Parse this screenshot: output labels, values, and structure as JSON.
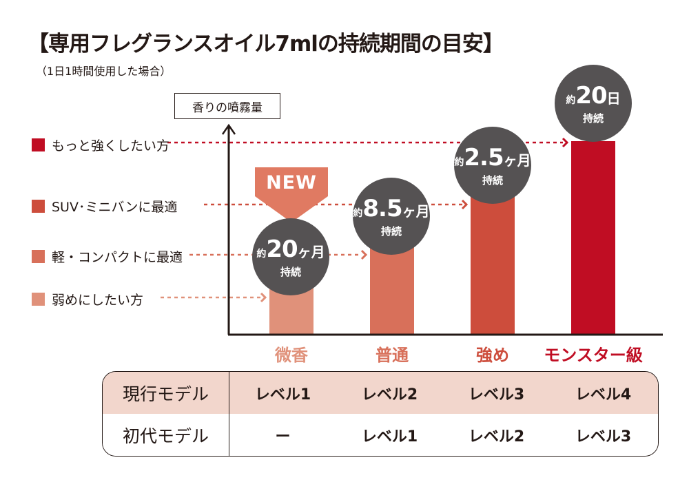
{
  "title": "【専用フレグランスオイル7mlの持続期間の目安】",
  "subtitle": "（1日1時間使用した場合）",
  "axis_label": "香りの噴霧量",
  "new_badge": "NEW",
  "colors": {
    "level1": "#e0917a",
    "level2": "#d8705a",
    "level3": "#cd4d3c",
    "level4": "#c00d23",
    "bubble": "#555253",
    "table_header_bg": "#f2d6cc",
    "text": "#231815"
  },
  "chart_data": {
    "type": "bar",
    "title": "【専用フレグランスオイル7mlの持続期間の目安】",
    "subtitle": "（1日1時間使用した場合）",
    "ylabel": "香りの噴霧量",
    "xlabel": "",
    "categories": [
      "微香",
      "普通",
      "強め",
      "モンスター級"
    ],
    "values": [
      1,
      2,
      3,
      4
    ],
    "ylim": [
      0,
      4.3
    ],
    "grid": false,
    "legend": [
      {
        "label": "弱めにしたい方",
        "color": "#e0917a",
        "target": "微香"
      },
      {
        "label": "軽・コンパクトに最適",
        "color": "#d8705a",
        "target": "普通"
      },
      {
        "label": "SUV･ミニバンに最適",
        "color": "#cd4d3c",
        "target": "強め"
      },
      {
        "label": "もっと強くしたい方",
        "color": "#c00d23",
        "target": "モンスター級"
      }
    ],
    "legend_placement": "left",
    "annotations": [
      {
        "category": "微香",
        "prefix": "約",
        "value": "20",
        "unit": "ヶ月",
        "note": "持続",
        "badge": "NEW"
      },
      {
        "category": "普通",
        "prefix": "約",
        "value": "8.5",
        "unit": "ヶ月",
        "note": "持続"
      },
      {
        "category": "強め",
        "prefix": "約",
        "value": "2.5",
        "unit": "ヶ月",
        "note": "持続"
      },
      {
        "category": "モンスター級",
        "prefix": "約",
        "value": "20",
        "unit": "日",
        "note": "持続"
      }
    ]
  },
  "legend": [
    {
      "label": "もっと強くしたい方"
    },
    {
      "label": "SUV･ミニバンに最適"
    },
    {
      "label": "軽・コンパクトに最適"
    },
    {
      "label": "弱めにしたい方"
    }
  ],
  "categories": [
    {
      "label": "微香"
    },
    {
      "label": "普通"
    },
    {
      "label": "強め"
    },
    {
      "label": "モンスター級"
    }
  ],
  "bubbles": [
    {
      "prefix": "約",
      "num": "20",
      "unit": "ヶ月",
      "sub": "持続"
    },
    {
      "prefix": "約",
      "num": "8.5",
      "unit": "ヶ月",
      "sub": "持続"
    },
    {
      "prefix": "約",
      "num": "2.5",
      "unit": "ヶ月",
      "sub": "持続"
    },
    {
      "prefix": "約",
      "num": "20",
      "unit": "日",
      "sub": "持続"
    }
  ],
  "table": {
    "rows": [
      {
        "header": "現行モデル",
        "cells": [
          "レベル1",
          "レベル2",
          "レベル3",
          "レベル4"
        ]
      },
      {
        "header": "初代モデル",
        "cells": [
          "ー",
          "レベル1",
          "レベル2",
          "レベル3"
        ]
      }
    ]
  }
}
